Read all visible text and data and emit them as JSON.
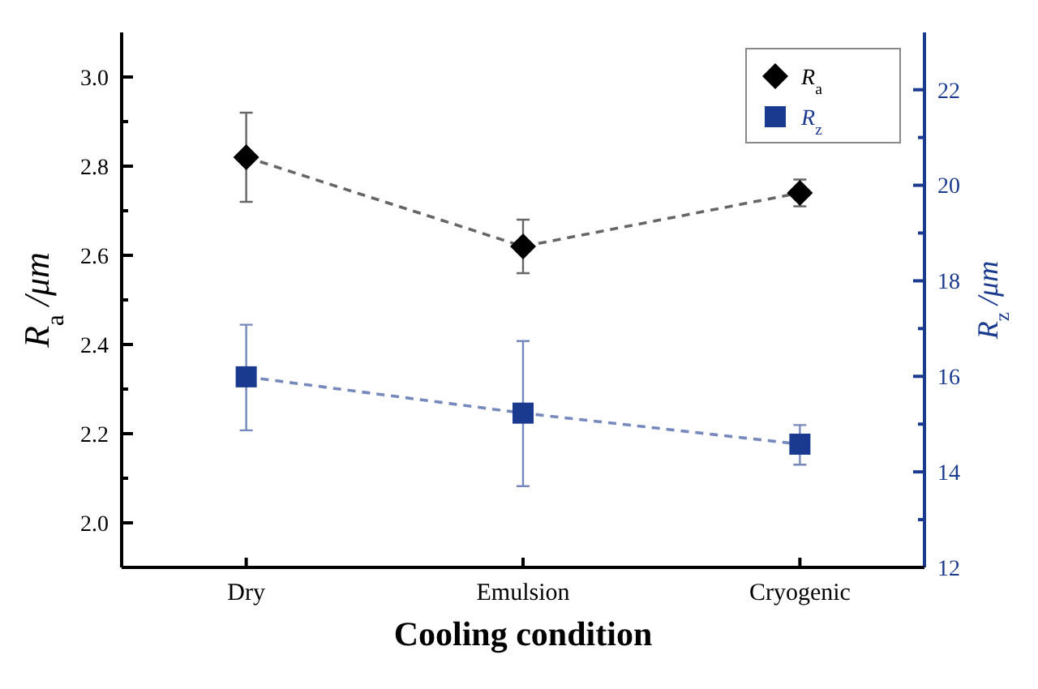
{
  "chart_data": {
    "type": "line",
    "xlabel": "Cooling condition",
    "ylabel": "R$_{a}$ /μm",
    "y2label": "R$_{z}$ /μm",
    "categories": [
      "Dry",
      "Emulsion",
      "Cryogenic"
    ],
    "series": [
      {
        "name": "R$_{a}$",
        "color": "#000000",
        "values": [
          2.82,
          2.62,
          2.74
        ],
        "errors": [
          [
            2.72,
            2.92
          ],
          [
            2.56,
            2.68
          ],
          [
            2.71,
            2.77
          ]
        ],
        "marker": "diamond"
      },
      {
        "name": "R$_{z}$",
        "color": "#1a3a8f",
        "axis": "y2",
        "values": [
          15.99,
          15.23,
          14.58
        ],
        "errors": [
          [
            14.87,
            17.08
          ],
          [
            13.7,
            16.74
          ],
          [
            14.15,
            14.98
          ]
        ],
        "marker": "square"
      }
    ],
    "ylim": [
      1.9,
      3.1
    ],
    "yticks": [
      {
        "value": 2.0,
        "label": "2.0"
      },
      {
        "value": 2.1,
        "label": null
      },
      {
        "value": 2.2,
        "label": "2.2"
      },
      {
        "value": 2.3,
        "label": null
      },
      {
        "value": 2.4,
        "label": "2.4"
      },
      {
        "value": 2.5,
        "label": null
      },
      {
        "value": 2.6,
        "label": "2.6"
      },
      {
        "value": 2.7,
        "label": null
      },
      {
        "value": 2.8,
        "label": "2.8"
      },
      {
        "value": 2.9,
        "label": null
      },
      {
        "value": 3.0,
        "label": "3.0"
      }
    ],
    "y2lim": [
      12,
      23.2
    ],
    "y2ticks": [
      12,
      {
        "value": 13,
        "label": null
      },
      14,
      {
        "value": 15,
        "label": null
      },
      16,
      {
        "value": 17,
        "label": null
      },
      18,
      {
        "value": 19,
        "label": null
      },
      20,
      {
        "value": 21,
        "label": null
      },
      22
    ],
    "line_style": "dashed",
    "grid": false,
    "legend": "top right"
  }
}
